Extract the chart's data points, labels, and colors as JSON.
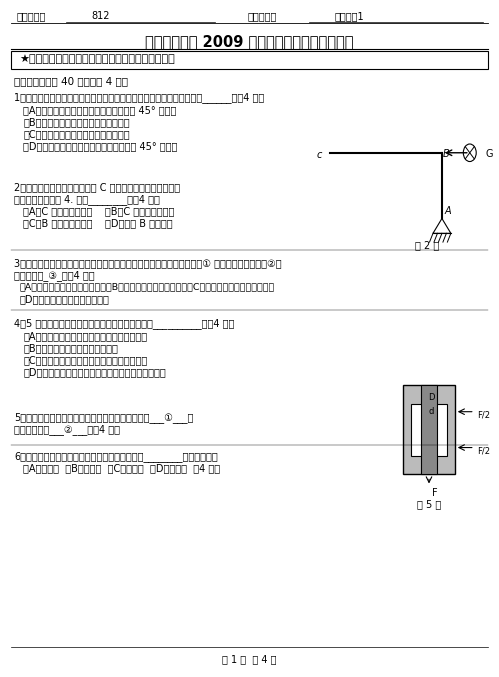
{
  "bg_color": "#ffffff",
  "header_line1_left": "科目代码：",
  "header_line1_code": "812",
  "header_line1_mid": "科目名称：",
  "header_line1_name": "材料力学1",
  "title": "北京工业大学 2009 年硕士研究生入学考试试题",
  "notice": "★所有答案必须做在答题纸上，做在试题纸上无效！",
  "section1": "一、理论题（共 40 分，每题 4 分）",
  "q1": "1、棒铁扭转破坏是由什么应力造成？破坏断面在什么方向？正确结论是______？（4 分）",
  "q1a": "（A）切应力造成，破坏断面在与轴线夹角 45° 方向；",
  "q1b": "（B）切应力造成，破坏断面在横截面；",
  "q1c": "（C）正应力造成，破坏断面在横截面；",
  "q1d": "（D）正应力造成，破坏断面在与轴线夹角 45° 方向。",
  "q2": "2、图示刚架受水平冲击，欲求 C 点的铅垂位移，则动荷系数",
  "q2b": "表达式中的静位移 4. 应是________。（4 分）",
  "q2a": "（A）C 点的铅垂位移；    （B）C 点的水平位移；",
  "q2c": "（C）B 点的水平位移；    （D）截面 B 的转角。",
  "q2fig": "题 2 图",
  "q3": "3、将沸水迅速倒入厚玻璃杯高度的一半时，玻璃杯发生破裂，裂缝是从① 开始，裂纹的方向是②，",
  "q3b": "正确结论是_③_？（4 分）",
  "q3a": "（A）内壁，裂缝沿玻璃杯轴向；（B）内壁，裂缝沿玻璃环向；（C）外壁，裂缝沿玻璃杯轴向；",
  "q3c": "（D）外壁，裂缝沿玻璃杯环向。",
  "q4": "4、5 种工程材料中，有下列四种说法：正确答案是__________。（4 分）",
  "q4a": "（A）松木、铸铁、玻钢可应用各向同性假设；",
  "q4b": "（B）松木不可应用各向同性假设；",
  "q4c": "（C）铸铁、松木、玻璃可应用各向同性假设；",
  "q4d": "（D）铸钢、铸铁、玻璃、松木可应用各向同性假设。",
  "q5": "5、拉伸试件的夹头如图所示，试件的挤压面积等于___①___；",
  "q5b": "受剪面积等于___②___。（4 分）",
  "q5fig": "题 5 图",
  "q6": "6、等截面直梁在弯曲变形时，挠曲线曲率在最大________处一定最大。",
  "q6b": "（A）挠度；  （B）转角；  （C）剪力；  （D）弯矩。  （4 分）",
  "footer": "第 1 页  共 4 页"
}
